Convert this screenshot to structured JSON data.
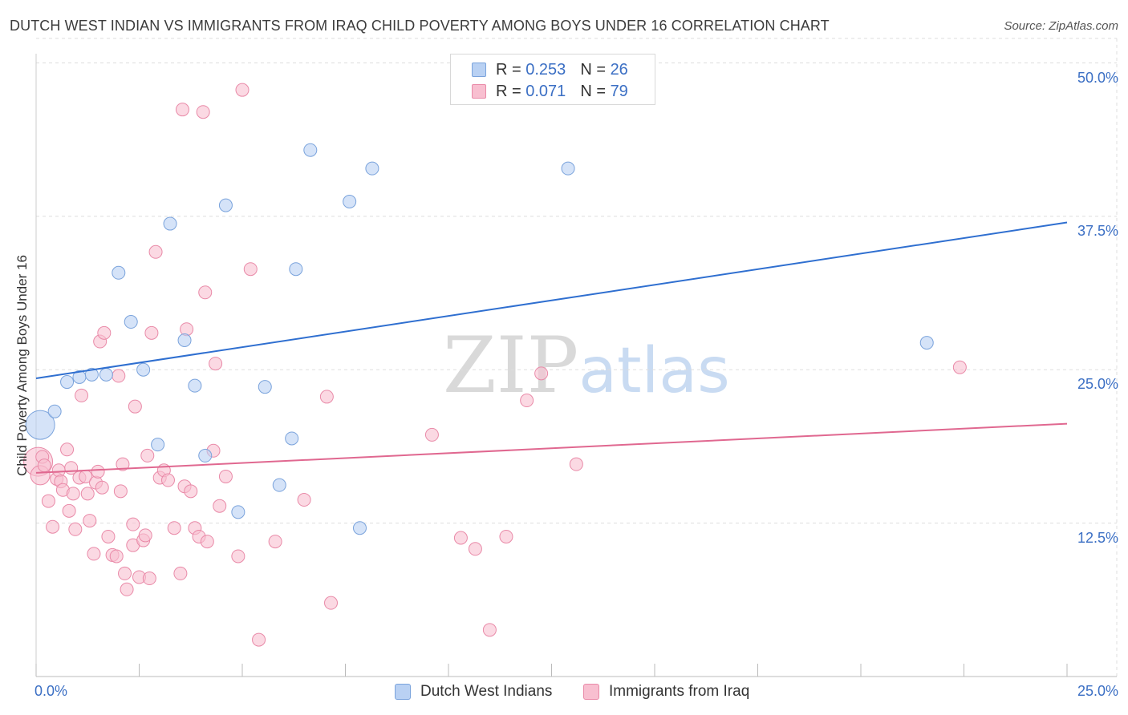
{
  "title": "DUTCH WEST INDIAN VS IMMIGRANTS FROM IRAQ CHILD POVERTY AMONG BOYS UNDER 16 CORRELATION CHART",
  "source": "Source: ZipAtlas.com",
  "watermark": {
    "zip": "ZIP",
    "atlas": "atlas"
  },
  "colors": {
    "blue_fill": "#b9d1f3",
    "blue_stroke": "#7aa3dc",
    "blue_line": "#2f6fd0",
    "pink_fill": "#f8bfd0",
    "pink_stroke": "#e98aa8",
    "pink_line": "#e06890",
    "tick_text": "#3b6fc4",
    "grid": "#dddddd"
  },
  "legend": {
    "rows": [
      {
        "r_label": "R =",
        "r_value": "0.253",
        "n_label": "N =",
        "n_value": "26"
      },
      {
        "r_label": "R =",
        "r_value": "0.071",
        "n_label": "N =",
        "n_value": "79"
      }
    ]
  },
  "bottom_legend": [
    "Dutch West Indians",
    "Immigrants from Iraq"
  ],
  "chart_data": {
    "type": "scatter",
    "title": "DUTCH WEST INDIAN VS IMMIGRANTS FROM IRAQ CHILD POVERTY AMONG BOYS UNDER 16 CORRELATION CHART",
    "xlabel": "",
    "ylabel": "Child Poverty Among Boys Under 16",
    "xlim": [
      0,
      25
    ],
    "ylim": [
      0,
      52
    ],
    "x_tick_labels": [
      "0.0%",
      "25.0%"
    ],
    "y_ticks": [
      12.5,
      25.0,
      37.5,
      50.0
    ],
    "y_tick_labels": [
      "12.5%",
      "25.0%",
      "37.5%",
      "50.0%"
    ],
    "grid": true,
    "series": [
      {
        "name": "Dutch West Indians",
        "r": 0.253,
        "n": 26,
        "trend": {
          "x": [
            0,
            25
          ],
          "y": [
            24.3,
            37.0
          ]
        },
        "points": [
          {
            "x": 0.1,
            "y": 20.5,
            "s": "big"
          },
          {
            "x": 0.45,
            "y": 21.6
          },
          {
            "x": 0.75,
            "y": 24.0
          },
          {
            "x": 1.05,
            "y": 24.4
          },
          {
            "x": 1.35,
            "y": 24.6
          },
          {
            "x": 1.7,
            "y": 24.6
          },
          {
            "x": 2.0,
            "y": 32.9
          },
          {
            "x": 2.3,
            "y": 28.9
          },
          {
            "x": 2.6,
            "y": 25.0
          },
          {
            "x": 2.95,
            "y": 18.9
          },
          {
            "x": 3.25,
            "y": 36.9
          },
          {
            "x": 3.6,
            "y": 27.4
          },
          {
            "x": 3.85,
            "y": 23.7
          },
          {
            "x": 4.1,
            "y": 18.0
          },
          {
            "x": 4.6,
            "y": 38.4
          },
          {
            "x": 4.9,
            "y": 13.4
          },
          {
            "x": 5.55,
            "y": 23.6
          },
          {
            "x": 5.9,
            "y": 15.6
          },
          {
            "x": 6.2,
            "y": 19.4
          },
          {
            "x": 6.3,
            "y": 33.2
          },
          {
            "x": 6.65,
            "y": 42.9
          },
          {
            "x": 7.6,
            "y": 38.7
          },
          {
            "x": 7.85,
            "y": 12.1
          },
          {
            "x": 8.15,
            "y": 41.4
          },
          {
            "x": 12.9,
            "y": 41.4
          },
          {
            "x": 21.6,
            "y": 27.2
          }
        ]
      },
      {
        "name": "Immigrants from Iraq",
        "r": 0.071,
        "n": 79,
        "trend": {
          "x": [
            0,
            25
          ],
          "y": [
            16.6,
            20.6
          ]
        },
        "points": [
          {
            "x": 0.05,
            "y": 17.5,
            "s": "big"
          },
          {
            "x": 0.1,
            "y": 16.4,
            "s": "mid"
          },
          {
            "x": 0.15,
            "y": 17.9
          },
          {
            "x": 0.2,
            "y": 17.2
          },
          {
            "x": 0.3,
            "y": 14.3
          },
          {
            "x": 0.4,
            "y": 12.2
          },
          {
            "x": 0.5,
            "y": 16.1
          },
          {
            "x": 0.55,
            "y": 16.8
          },
          {
            "x": 0.6,
            "y": 15.9
          },
          {
            "x": 0.65,
            "y": 15.2
          },
          {
            "x": 0.75,
            "y": 18.5
          },
          {
            "x": 0.8,
            "y": 13.5
          },
          {
            "x": 0.85,
            "y": 17.0
          },
          {
            "x": 0.9,
            "y": 14.9
          },
          {
            "x": 0.95,
            "y": 12.0
          },
          {
            "x": 1.05,
            "y": 16.2
          },
          {
            "x": 1.1,
            "y": 22.9
          },
          {
            "x": 1.2,
            "y": 16.3
          },
          {
            "x": 1.25,
            "y": 14.9
          },
          {
            "x": 1.3,
            "y": 12.7
          },
          {
            "x": 1.4,
            "y": 10.0
          },
          {
            "x": 1.45,
            "y": 15.8
          },
          {
            "x": 1.5,
            "y": 16.7
          },
          {
            "x": 1.55,
            "y": 27.3
          },
          {
            "x": 1.6,
            "y": 15.4
          },
          {
            "x": 1.65,
            "y": 28.0
          },
          {
            "x": 1.75,
            "y": 11.4
          },
          {
            "x": 1.85,
            "y": 9.9
          },
          {
            "x": 1.95,
            "y": 9.8
          },
          {
            "x": 2.0,
            "y": 24.5
          },
          {
            "x": 2.05,
            "y": 15.1
          },
          {
            "x": 2.1,
            "y": 17.3
          },
          {
            "x": 2.15,
            "y": 8.4
          },
          {
            "x": 2.2,
            "y": 7.1
          },
          {
            "x": 2.35,
            "y": 12.4
          },
          {
            "x": 2.35,
            "y": 10.7
          },
          {
            "x": 2.4,
            "y": 22.0
          },
          {
            "x": 2.5,
            "y": 8.1
          },
          {
            "x": 2.6,
            "y": 11.1
          },
          {
            "x": 2.65,
            "y": 11.5
          },
          {
            "x": 2.7,
            "y": 18.0
          },
          {
            "x": 2.75,
            "y": 8.0
          },
          {
            "x": 2.8,
            "y": 28.0
          },
          {
            "x": 2.9,
            "y": 34.6
          },
          {
            "x": 3.0,
            "y": 16.2
          },
          {
            "x": 3.1,
            "y": 16.8
          },
          {
            "x": 3.2,
            "y": 16.0
          },
          {
            "x": 3.35,
            "y": 12.1
          },
          {
            "x": 3.5,
            "y": 8.4
          },
          {
            "x": 3.55,
            "y": 46.2
          },
          {
            "x": 3.6,
            "y": 15.5
          },
          {
            "x": 3.65,
            "y": 28.3
          },
          {
            "x": 3.75,
            "y": 15.1
          },
          {
            "x": 3.85,
            "y": 12.1
          },
          {
            "x": 3.95,
            "y": 11.4
          },
          {
            "x": 4.05,
            "y": 46.0
          },
          {
            "x": 4.1,
            "y": 31.3
          },
          {
            "x": 4.15,
            "y": 11.0
          },
          {
            "x": 4.3,
            "y": 18.4
          },
          {
            "x": 4.35,
            "y": 25.5
          },
          {
            "x": 4.45,
            "y": 13.9
          },
          {
            "x": 4.6,
            "y": 16.3
          },
          {
            "x": 4.9,
            "y": 9.8
          },
          {
            "x": 5.0,
            "y": 47.8
          },
          {
            "x": 5.2,
            "y": 33.2
          },
          {
            "x": 5.4,
            "y": 3.0
          },
          {
            "x": 5.8,
            "y": 11.0
          },
          {
            "x": 6.5,
            "y": 14.4
          },
          {
            "x": 7.05,
            "y": 22.8
          },
          {
            "x": 7.15,
            "y": 6.0
          },
          {
            "x": 9.6,
            "y": 19.7
          },
          {
            "x": 10.3,
            "y": 11.3
          },
          {
            "x": 10.65,
            "y": 10.4
          },
          {
            "x": 11.0,
            "y": 3.8
          },
          {
            "x": 11.4,
            "y": 11.4
          },
          {
            "x": 11.9,
            "y": 22.5
          },
          {
            "x": 12.25,
            "y": 24.7
          },
          {
            "x": 13.1,
            "y": 17.3
          },
          {
            "x": 22.4,
            "y": 25.2
          }
        ]
      }
    ]
  }
}
